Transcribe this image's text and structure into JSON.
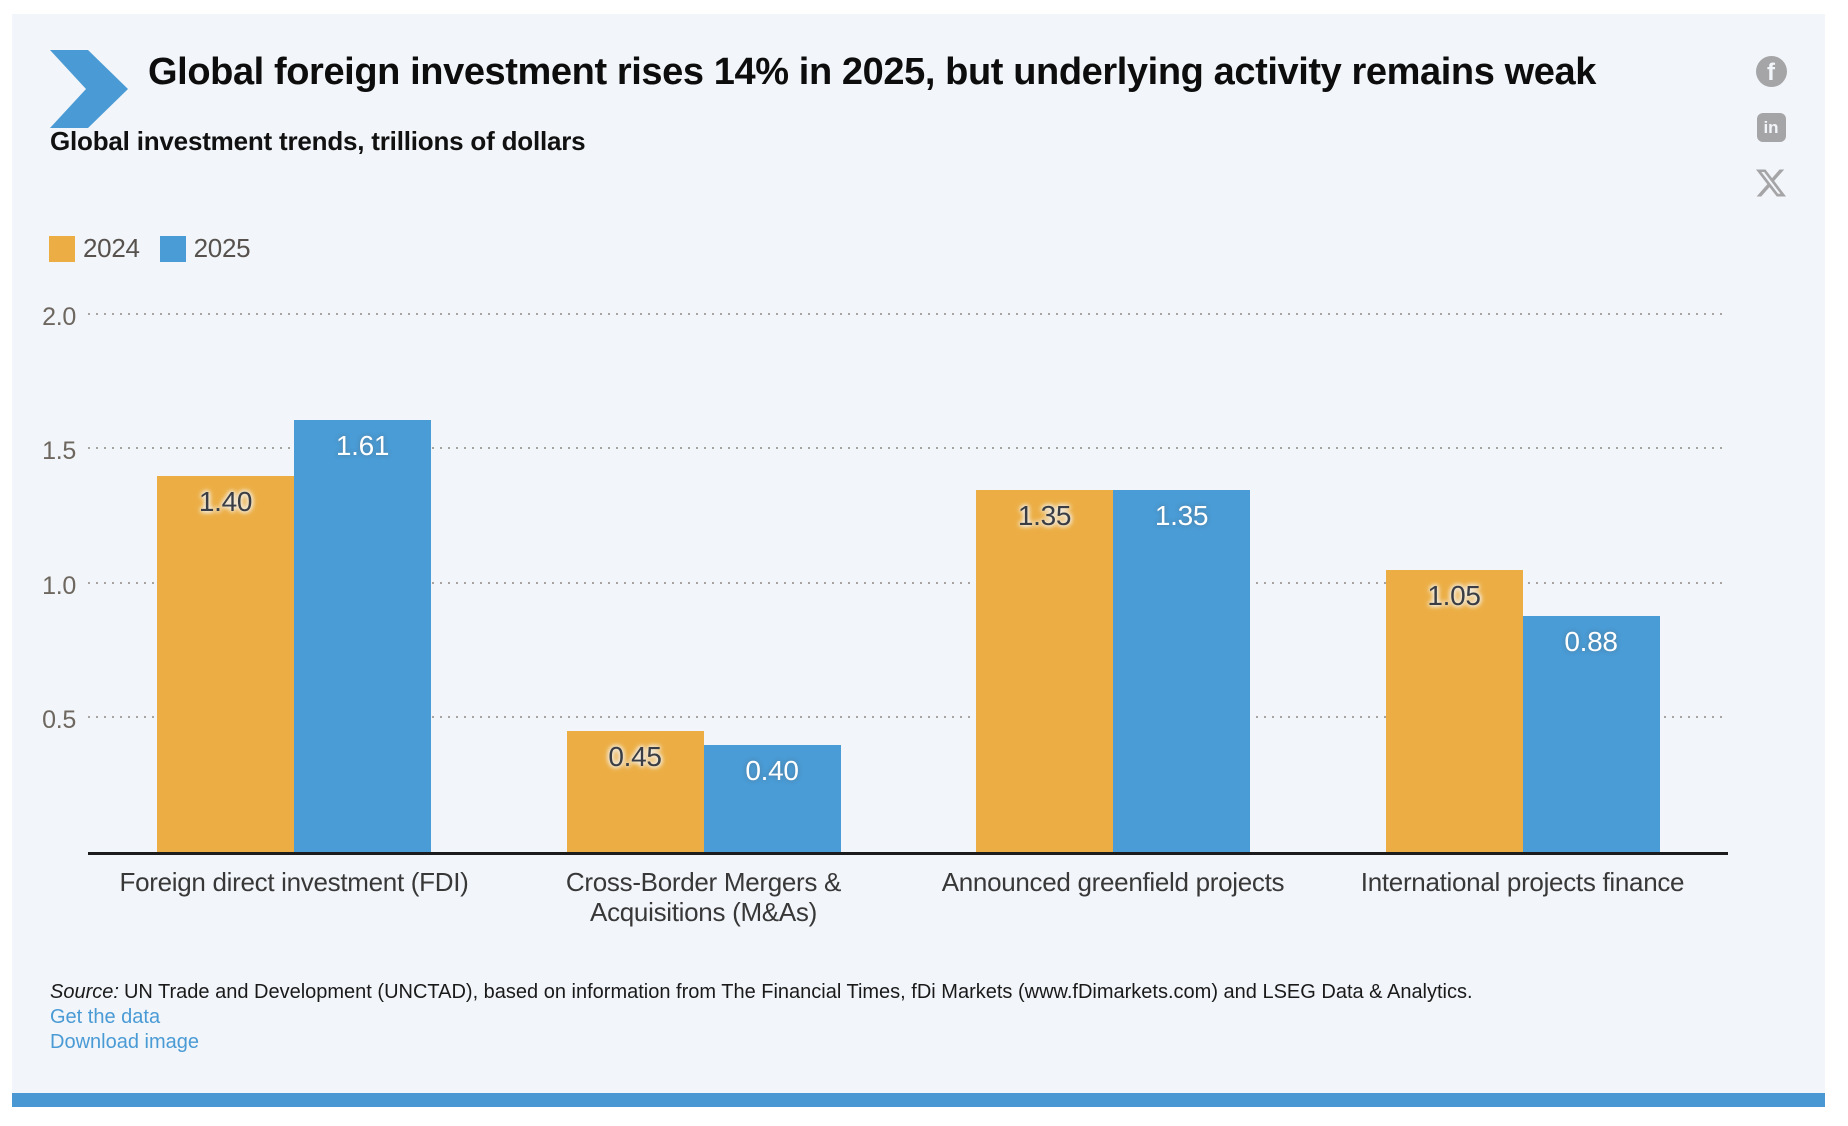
{
  "page": {
    "title": "Global foreign investment rises 14% in 2025, but underlying activity remains weak",
    "subtitle": "Global investment trends, trillions of dollars"
  },
  "social": {
    "facebook_glyph": "f",
    "linkedin_glyph": "in"
  },
  "chart_data": {
    "type": "bar",
    "title": "Global investment trends, trillions of dollars",
    "unit": "trillions of dollars",
    "categories": [
      "Foreign direct investment (FDI)",
      "Cross-Border Mergers & Acquisitions (M&As)",
      "Announced greenfield projects",
      "International projects finance"
    ],
    "category_lines": [
      [
        "Foreign direct investment (FDI)"
      ],
      [
        "Cross-Border Mergers &",
        "Acquisitions (M&As)"
      ],
      [
        "Announced greenfield projects"
      ],
      [
        "International projects finance"
      ]
    ],
    "series": [
      {
        "name": "2024",
        "color": "#ECAE44",
        "label_style": "dark",
        "values": [
          1.4,
          0.45,
          1.35,
          1.05
        ]
      },
      {
        "name": "2025",
        "color": "#4A9CD6",
        "label_style": "light",
        "values": [
          1.61,
          0.4,
          1.35,
          0.88
        ]
      }
    ],
    "ylim": [
      0,
      2.0
    ],
    "yticks": [
      0.5,
      1.0,
      1.5,
      2.0
    ],
    "ytick_labels": [
      "0.5",
      "1.0",
      "1.5",
      "2.0"
    ],
    "grid": "horizontal-dotted",
    "legend_position": "top-left",
    "value_labels": "inside-top"
  },
  "footer": {
    "source_label": "Source:",
    "source_text": "UN Trade and Development (UNCTAD), based on information from The Financial Times, fDi Markets (www.fDimarkets.com) and LSEG Data & Analytics.",
    "links": [
      {
        "label": "Get the data"
      },
      {
        "label": "Download image"
      }
    ]
  },
  "colors": {
    "accent_blue": "#4A9BD5",
    "bar_2024": "#ECAE44",
    "bar_2025": "#4A9CD6",
    "footer_strip": "#4A98D3",
    "card_bg": "#F2F5F9",
    "social_gray": "#A5A5A7"
  }
}
